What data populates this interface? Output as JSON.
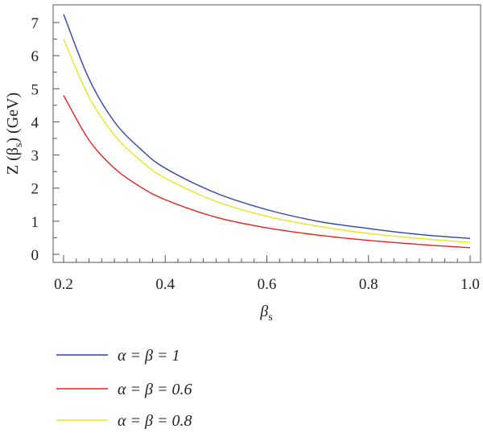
{
  "chart_data": {
    "type": "line",
    "title": "",
    "xlabel": "β",
    "xlabel_sub": "s",
    "ylabel": "Z (β",
    "ylabel_sub": "s",
    "ylabel_suffix": ") (GeV)",
    "xlim": [
      0.2,
      1.0
    ],
    "ylim": [
      0,
      7.5
    ],
    "x_ticks": [
      "0.2",
      "0.4",
      "0.6",
      "0.8",
      "1.0"
    ],
    "y_ticks": [
      "0",
      "1",
      "2",
      "3",
      "4",
      "5",
      "6",
      "7"
    ],
    "grid": false,
    "legend_position": "bottom-left",
    "x": [
      0.2,
      0.25,
      0.3,
      0.35,
      0.4,
      0.5,
      0.6,
      0.7,
      0.8,
      0.9,
      1.0
    ],
    "series": [
      {
        "name": "α = β = 1",
        "color": "#2f45a8",
        "values": [
          7.25,
          5.3,
          4.0,
          3.2,
          2.6,
          1.85,
          1.35,
          1.0,
          0.78,
          0.6,
          0.48
        ]
      },
      {
        "name": "α = β = 0.6",
        "color": "#e8201e",
        "values": [
          4.8,
          3.45,
          2.6,
          2.05,
          1.65,
          1.12,
          0.8,
          0.58,
          0.42,
          0.3,
          0.2
        ]
      },
      {
        "name": "α = β = 0.8",
        "color": "#e6e61e",
        "values": [
          6.5,
          4.75,
          3.6,
          2.85,
          2.3,
          1.6,
          1.15,
          0.85,
          0.63,
          0.48,
          0.36
        ]
      }
    ]
  }
}
